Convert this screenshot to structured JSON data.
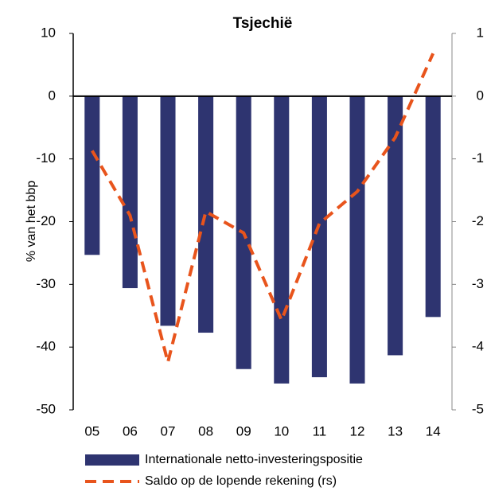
{
  "chart_data": {
    "type": "bar-line",
    "title": "Tsjechië",
    "y_label": "% van het bbp",
    "categories": [
      "05",
      "06",
      "07",
      "08",
      "09",
      "10",
      "11",
      "12",
      "13",
      "14"
    ],
    "series": [
      {
        "name": "Internationale netto-investeringspositie",
        "type": "bar",
        "color": "#2e3470",
        "values": [
          -25.3,
          -30.6,
          -36.6,
          -37.7,
          -43.5,
          -45.8,
          -44.8,
          -45.8,
          -41.3,
          -35.2
        ]
      },
      {
        "name": "Saldo op de lopende rekening (rs)",
        "type": "line",
        "axis": "y2",
        "color": "#e8541c",
        "values": [
          -0.87,
          -1.9,
          -4.24,
          -1.84,
          -2.18,
          -3.57,
          -2.03,
          -1.52,
          -0.66,
          0.68
        ]
      }
    ],
    "ylim": [
      -50,
      10
    ],
    "yticks": [
      -50,
      -40,
      -30,
      -20,
      -10,
      0,
      10
    ],
    "y2lim": [
      -5,
      1
    ],
    "y2ticks": [
      -5,
      -4,
      -3,
      -2,
      -1,
      0,
      1
    ]
  }
}
